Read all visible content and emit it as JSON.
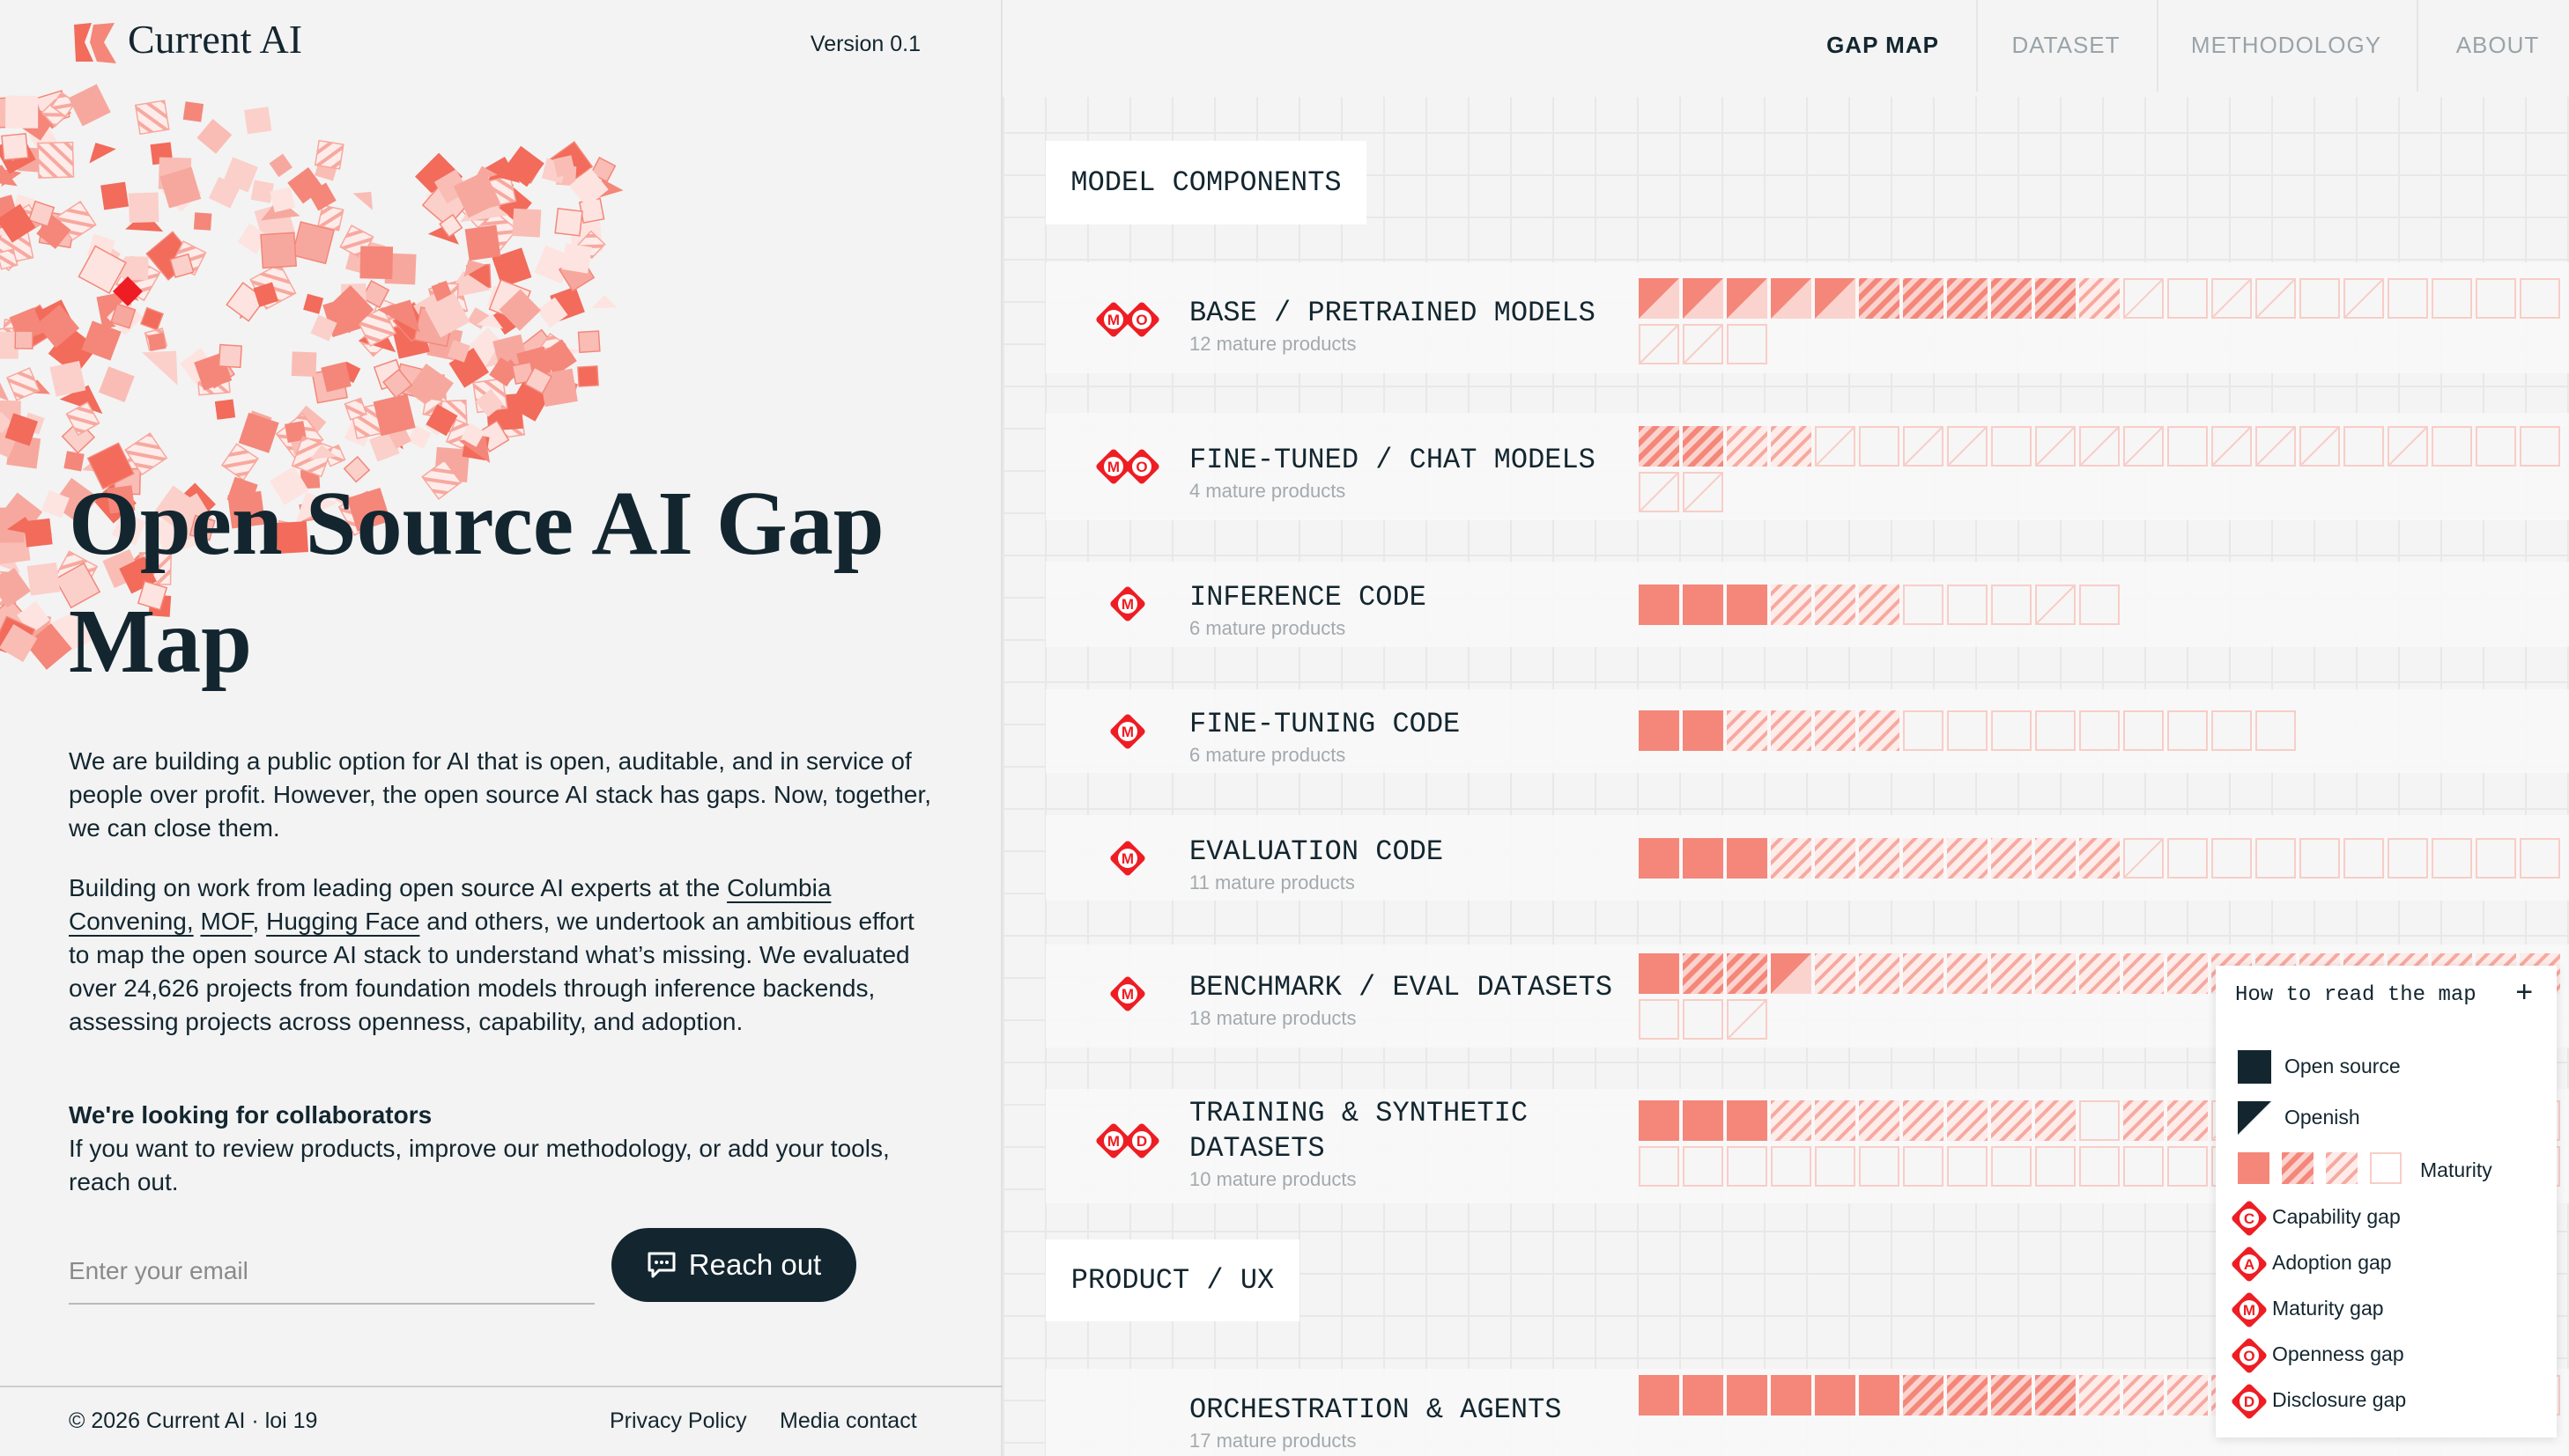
{
  "header": {
    "brand": "Current AI",
    "version": "Version 0.1"
  },
  "nav": [
    "GAP MAP",
    "DATASET",
    "METHODOLOGY",
    "ABOUT"
  ],
  "hero": {
    "title": "Open Source AI Gap Map",
    "intro": "We are building a public option for AI that is open, auditable, and in service of people over profit. However, the open source AI stack has gaps. Now, together, we can close them.",
    "paragraph": [
      {
        "text": "Building on work from leading open source AI experts at the ",
        "link": false
      },
      {
        "text": "Columbia Convening,",
        "link": true
      },
      {
        "text": " ",
        "link": false
      },
      {
        "text": "MOF",
        "link": true
      },
      {
        "text": ", ",
        "link": false
      },
      {
        "text": "Hugging Face",
        "link": true
      },
      {
        "text": " and others, we undertook an ambitious effort to map the open source AI stack to understand what’s missing. We evaluated over 24,626 projects from foundation models through inference backends, assessing projects across openness, capability, and adoption.",
        "link": false
      }
    ],
    "collab_title": "We're looking for collaborators",
    "collab_text": "If you want to review products, improve our methodology, or add your tools, reach out.",
    "email_placeholder": "Enter your email",
    "button": "Reach out"
  },
  "footer": {
    "copyright": "© 2026 Current AI · loi 19",
    "links": [
      "Privacy Policy",
      "Media contact"
    ]
  },
  "sections": [
    {
      "title": "MODEL COMPONENTS",
      "rows": [
        {
          "name": "BASE / PRETRAINED MODELS",
          "sub": "12 mature products",
          "gaps": [
            "M",
            "O"
          ]
        },
        {
          "name": "FINE-TUNED / CHAT MODELS",
          "sub": "4 mature products",
          "gaps": [
            "M",
            "O"
          ]
        },
        {
          "name": "INFERENCE CODE",
          "sub": "6 mature products",
          "gaps": [
            "M"
          ]
        },
        {
          "name": "FINE-TUNING CODE",
          "sub": "6 mature products",
          "gaps": [
            "M"
          ]
        },
        {
          "name": "EVALUATION CODE",
          "sub": "11 mature products",
          "gaps": [
            "M"
          ]
        },
        {
          "name": "BENCHMARK / EVAL DATASETS",
          "sub": "18 mature products",
          "gaps": [
            "M"
          ]
        },
        {
          "name": "TRAINING & SYNTHETIC DATASETS",
          "sub": "10 mature products",
          "gaps": [
            "M",
            "D"
          ]
        }
      ]
    },
    {
      "title": "PRODUCT / UX",
      "rows": [
        {
          "name": "ORCHESTRATION & AGENTS",
          "sub": "17 mature products",
          "gaps": []
        }
      ]
    }
  ],
  "legend": {
    "title": "How to read the map",
    "toggle": "+",
    "open_source": "Open source",
    "openish": "Openish",
    "maturity": "Maturity",
    "gaps": [
      {
        "letter": "C",
        "label": "Capability gap"
      },
      {
        "letter": "A",
        "label": "Adoption gap"
      },
      {
        "letter": "M",
        "label": "Maturity gap"
      },
      {
        "letter": "O",
        "label": "Openness gap"
      },
      {
        "letter": "D",
        "label": "Disclosure gap"
      }
    ]
  }
}
